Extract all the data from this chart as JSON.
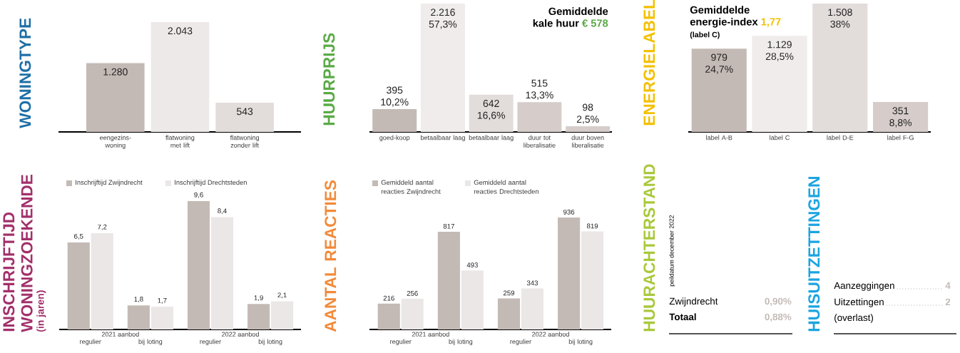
{
  "chart_data": [
    {
      "type": "bar",
      "title": "WONINGTYPE",
      "categories": [
        "eengezins-woning",
        "flatwoning met lift",
        "flatwoning zonder lift"
      ],
      "values": [
        1280,
        2043,
        543
      ],
      "colors": [
        "#c4bab5",
        "#ede9e8",
        "#e2dddb"
      ],
      "value_labels": [
        "1.280",
        "2.043",
        "543"
      ]
    },
    {
      "type": "bar",
      "title": "HUURPRIJS",
      "categories": [
        "goed-koop",
        "betaalbaar laag",
        "betaalbaar laag",
        "duur tot liberalisatie",
        "duur boven liberalisatie"
      ],
      "values": [
        395,
        2216,
        642,
        515,
        98
      ],
      "colors": [
        "#c4bab5",
        "#efeceb",
        "#e2dddb",
        "#d6cdca",
        "#d6cdca"
      ],
      "value_labels": [
        "395 10,2%",
        "2.216 57,3%",
        "642 16,6%",
        "515 13,3%",
        "98 2,5%"
      ],
      "annotations": [
        "Gemiddelde",
        "kale huur",
        "€ 578"
      ]
    },
    {
      "type": "bar",
      "title": "ENERGIELABEL",
      "categories": [
        "label A-B",
        "label C",
        "label D-E",
        "label F-G"
      ],
      "values": [
        979,
        1129,
        1508,
        351
      ],
      "colors": [
        "#c4bab5",
        "#efeceb",
        "#e2dddb",
        "#d6cdca"
      ],
      "value_labels": [
        "979 24,7%",
        "1.129 28,5%",
        "1.508 38%",
        "351 8,8%"
      ],
      "annotations": [
        "Gemiddelde",
        "energie-index",
        "1,77",
        "(label C)"
      ]
    },
    {
      "type": "bar",
      "title": "INSCHRIJFTIJD WONINGZOEKENDE",
      "subtitle": "(in jaren)",
      "categories": [
        "regulier",
        "bij loting",
        "regulier",
        "bij loting"
      ],
      "legend": "top left",
      "annotations": [
        "2021 aanbod",
        "2022 aanbod"
      ],
      "series": [
        {
          "name": "Inschrijftijd Zwijndrecht",
          "color": "#c4bab5",
          "values": [
            6.5,
            1.8,
            9.6,
            1.9
          ],
          "value_labels": [
            "6,5",
            "1,8",
            "9,6",
            "1,9"
          ]
        },
        {
          "name": "Inschrijftijd Drechtsteden",
          "color": "#ebe7e6",
          "values": [
            7.2,
            1.7,
            8.4,
            2.1
          ],
          "value_labels": [
            "7,2",
            "1,7",
            "8,4",
            "2,1"
          ]
        }
      ]
    },
    {
      "type": "bar",
      "title": "AANTAL REACTIES",
      "categories": [
        "regulier",
        "bij loting",
        "regulier",
        "bij loting"
      ],
      "legend": "top left",
      "data_labels": true,
      "annotations": [
        "2021 aanbod",
        "2022 aanbod"
      ],
      "series": [
        {
          "name": "Gemiddeld aantal reacties Zwijndrecht",
          "color": "#c4bab5",
          "values": [
            216,
            817,
            259,
            936
          ]
        },
        {
          "name": "Gemiddeld aantal reacties Drechtsteden",
          "color": "#ebe7e6",
          "values": [
            256,
            493,
            343,
            819
          ]
        }
      ]
    },
    {
      "type": "other",
      "title": "HUURACHTERSTAND",
      "subtitle": "peildatum december 2022",
      "annotations": [
        "Zwijndrecht",
        "0,90%",
        "Totaal",
        "0,88%"
      ]
    },
    {
      "type": "other",
      "title": "HUISUITZETTINGEN",
      "annotations": [
        "Aanzeggingen",
        "4",
        "Uitzettingen",
        "2",
        "(overlast)"
      ]
    }
  ]
}
